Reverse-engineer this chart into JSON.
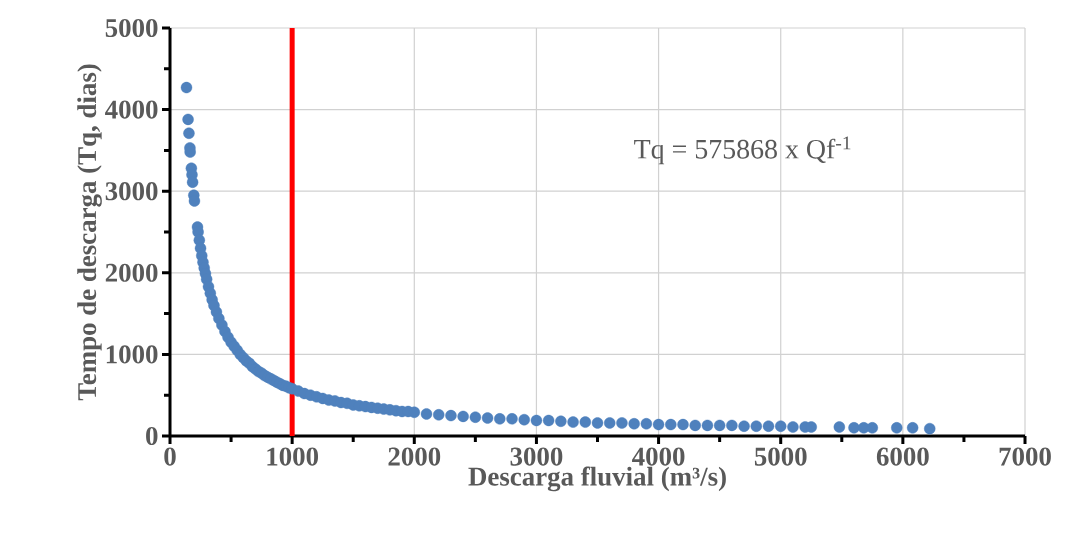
{
  "chart_data": {
    "type": "scatter",
    "xlabel": "Descarga fluvial (m³/s)",
    "ylabel": "Tempo de descarga (Tq, dias)",
    "annotations": [
      "Tq = 575868  x Qf$^{-1}$"
    ],
    "x": [
      135,
      148,
      155,
      163,
      165,
      175,
      180,
      185,
      195,
      200,
      225,
      230,
      240,
      250,
      260,
      270,
      280,
      290,
      300,
      315,
      330,
      345,
      360,
      380,
      400,
      425,
      450,
      475,
      500,
      525,
      550,
      575,
      600,
      625,
      650,
      675,
      700,
      725,
      750,
      775,
      800,
      825,
      850,
      875,
      900,
      925,
      950,
      975,
      1000,
      1050,
      1100,
      1150,
      1200,
      1250,
      1300,
      1350,
      1400,
      1450,
      1500,
      1550,
      1600,
      1650,
      1700,
      1750,
      1800,
      1850,
      1900,
      1950,
      2000,
      2100,
      2200,
      2300,
      2400,
      2500,
      2600,
      2700,
      2800,
      2900,
      3000,
      3100,
      3200,
      3300,
      3400,
      3500,
      3600,
      3700,
      3800,
      3900,
      4000,
      4100,
      4200,
      4300,
      4400,
      4500,
      4600,
      4700,
      4800,
      4900,
      5000,
      5100,
      5200,
      5250,
      5480,
      5600,
      5680,
      5750,
      5950,
      6080,
      6220
    ],
    "values": [
      4270,
      3880,
      3710,
      3530,
      3480,
      3280,
      3200,
      3110,
      2950,
      2880,
      2560,
      2500,
      2400,
      2300,
      2210,
      2130,
      2060,
      1990,
      1920,
      1830,
      1750,
      1670,
      1600,
      1520,
      1440,
      1360,
      1280,
      1210,
      1150,
      1100,
      1050,
      1000,
      960,
      920,
      890,
      850,
      820,
      790,
      770,
      740,
      720,
      700,
      680,
      660,
      640,
      620,
      610,
      590,
      580,
      550,
      520,
      500,
      480,
      460,
      440,
      430,
      410,
      400,
      380,
      370,
      360,
      350,
      340,
      330,
      320,
      310,
      300,
      300,
      290,
      270,
      260,
      250,
      240,
      230,
      220,
      210,
      210,
      200,
      190,
      190,
      180,
      170,
      170,
      160,
      160,
      160,
      150,
      150,
      140,
      140,
      140,
      130,
      130,
      130,
      130,
      120,
      120,
      120,
      120,
      110,
      110,
      110,
      110,
      100,
      100,
      100,
      100,
      100,
      90
    ],
    "color": "#4f81bd",
    "marker": "circle",
    "xlim": [
      0,
      7000
    ],
    "ylim": [
      0,
      5000
    ],
    "xticks": [
      0,
      1000,
      2000,
      3000,
      4000,
      5000,
      6000,
      7000
    ],
    "yticks": [
      0,
      1000,
      2000,
      3000,
      4000,
      5000
    ],
    "ref_lines": [
      {
        "axis": "x",
        "value": 1000,
        "color": "#ff0000"
      }
    ],
    "grid": true
  }
}
